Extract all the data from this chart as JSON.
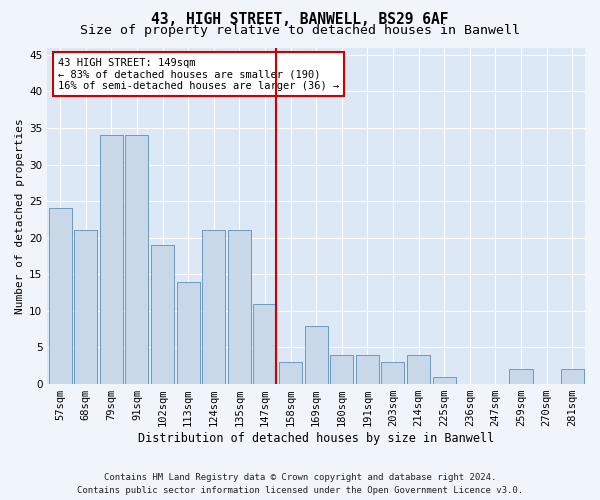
{
  "title": "43, HIGH STREET, BANWELL, BS29 6AF",
  "subtitle": "Size of property relative to detached houses in Banwell",
  "xlabel": "Distribution of detached houses by size in Banwell",
  "ylabel": "Number of detached properties",
  "categories": [
    "57sqm",
    "68sqm",
    "79sqm",
    "91sqm",
    "102sqm",
    "113sqm",
    "124sqm",
    "135sqm",
    "147sqm",
    "158sqm",
    "169sqm",
    "180sqm",
    "191sqm",
    "203sqm",
    "214sqm",
    "225sqm",
    "236sqm",
    "247sqm",
    "259sqm",
    "270sqm",
    "281sqm"
  ],
  "values": [
    24,
    21,
    34,
    34,
    19,
    14,
    21,
    21,
    11,
    3,
    8,
    4,
    4,
    3,
    4,
    1,
    0,
    0,
    2,
    0,
    2
  ],
  "bar_color": "#c8d8e8",
  "bar_edge_color": "#6a9abf",
  "highlight_index": 8,
  "highlight_color": "#cc0000",
  "annotation_line1": "43 HIGH STREET: 149sqm",
  "annotation_line2": "← 83% of detached houses are smaller (190)",
  "annotation_line3": "16% of semi-detached houses are larger (36) →",
  "annotation_box_color": "#ffffff",
  "annotation_box_edge_color": "#cc0000",
  "ylim": [
    0,
    46
  ],
  "yticks": [
    0,
    5,
    10,
    15,
    20,
    25,
    30,
    35,
    40,
    45
  ],
  "fig_bg_color": "#f0f4fb",
  "ax_bg_color": "#dce8f5",
  "footer_line1": "Contains HM Land Registry data © Crown copyright and database right 2024.",
  "footer_line2": "Contains public sector information licensed under the Open Government Licence v3.0.",
  "title_fontsize": 10.5,
  "subtitle_fontsize": 9.5,
  "xlabel_fontsize": 8.5,
  "ylabel_fontsize": 8,
  "tick_fontsize": 7.5,
  "annot_fontsize": 7.5,
  "footer_fontsize": 6.5
}
